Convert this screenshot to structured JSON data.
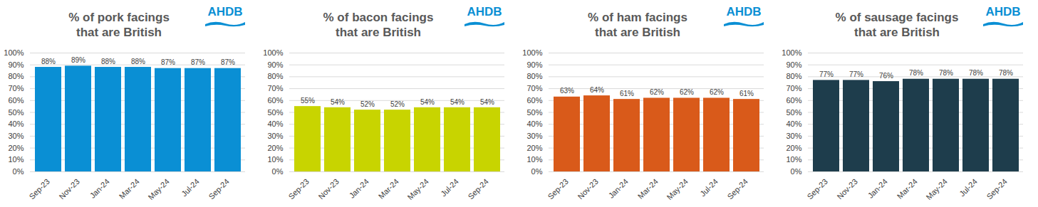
{
  "chart_data": [
    {
      "type": "bar",
      "title": "% of pork facings\nthat are British",
      "annotations": [
        "AHDB"
      ],
      "categories": [
        "Sep-23",
        "Nov-23",
        "Jan-24",
        "Mar-24",
        "May-24",
        "Jul-24",
        "Sep-24"
      ],
      "values": [
        88,
        89,
        88,
        88,
        87,
        87,
        87
      ],
      "value_labels": [
        "88%",
        "89%",
        "88%",
        "88%",
        "87%",
        "87%",
        "87%"
      ],
      "color": "#0a8fd4",
      "ylim": [
        0,
        100
      ],
      "yticks": [
        {
          "value": 0,
          "label": "0%"
        },
        {
          "value": 10,
          "label": "10%"
        },
        {
          "value": 20,
          "label": "20%"
        },
        {
          "value": 30,
          "label": "30%"
        },
        {
          "value": 40,
          "label": "40%"
        },
        {
          "value": 50,
          "label": "50%"
        },
        {
          "value": 60,
          "label": "60%"
        },
        {
          "value": 70,
          "label": "70%"
        },
        {
          "value": 80,
          "label": "80%"
        },
        {
          "value": 90,
          "label": "90%"
        },
        {
          "value": 100,
          "label": "100%"
        }
      ],
      "grid": true,
      "data_labels": true
    },
    {
      "type": "bar",
      "title": "% of bacon facings\nthat are British",
      "annotations": [
        "AHDB"
      ],
      "categories": [
        "Sep-23",
        "Nov-23",
        "Jan-24",
        "Mar-24",
        "May-24",
        "Jul-24",
        "Sep-24"
      ],
      "values": [
        55,
        54,
        52,
        52,
        54,
        54,
        54
      ],
      "value_labels": [
        "55%",
        "54%",
        "52%",
        "52%",
        "54%",
        "54%",
        "54%"
      ],
      "color": "#c8d400",
      "ylim": [
        0,
        100
      ],
      "yticks": [
        {
          "value": 0,
          "label": "0%"
        },
        {
          "value": 10,
          "label": "10%"
        },
        {
          "value": 20,
          "label": "20%"
        },
        {
          "value": 30,
          "label": "30%"
        },
        {
          "value": 40,
          "label": "40%"
        },
        {
          "value": 50,
          "label": "50%"
        },
        {
          "value": 60,
          "label": "60%"
        },
        {
          "value": 70,
          "label": "70%"
        },
        {
          "value": 80,
          "label": "80%"
        },
        {
          "value": 90,
          "label": "90%"
        },
        {
          "value": 100,
          "label": "100%"
        }
      ],
      "grid": true,
      "data_labels": true
    },
    {
      "type": "bar",
      "title": "% of ham facings\nthat are British",
      "annotations": [
        "AHDB"
      ],
      "categories": [
        "Sep-23",
        "Nov-23",
        "Jan-24",
        "Mar-24",
        "May-24",
        "Jul-24",
        "Sep-24"
      ],
      "values": [
        63,
        64,
        61,
        62,
        62,
        62,
        61
      ],
      "value_labels": [
        "63%",
        "64%",
        "61%",
        "62%",
        "62%",
        "62%",
        "61%"
      ],
      "color": "#d95a1a",
      "ylim": [
        0,
        100
      ],
      "yticks": [
        {
          "value": 0,
          "label": "0%"
        },
        {
          "value": 10,
          "label": "10%"
        },
        {
          "value": 20,
          "label": "20%"
        },
        {
          "value": 30,
          "label": "30%"
        },
        {
          "value": 40,
          "label": "40%"
        },
        {
          "value": 50,
          "label": "50%"
        },
        {
          "value": 60,
          "label": "60%"
        },
        {
          "value": 70,
          "label": "70%"
        },
        {
          "value": 80,
          "label": "80%"
        },
        {
          "value": 90,
          "label": "90%"
        },
        {
          "value": 100,
          "label": "100%"
        }
      ],
      "grid": true,
      "data_labels": true
    },
    {
      "type": "bar",
      "title": "% of sausage facings\nthat are British",
      "annotations": [
        "AHDB"
      ],
      "categories": [
        "Sep-23",
        "Nov-23",
        "Jan-24",
        "Mar-24",
        "May-24",
        "Jul-24",
        "Sep-24"
      ],
      "values": [
        77,
        77,
        76,
        78,
        78,
        78,
        78
      ],
      "value_labels": [
        "77%",
        "77%",
        "76%",
        "78%",
        "78%",
        "78%",
        "78%"
      ],
      "color": "#1e3d4c",
      "ylim": [
        0,
        100
      ],
      "yticks": [
        {
          "value": 0,
          "label": "0%"
        },
        {
          "value": 10,
          "label": "10%"
        },
        {
          "value": 20,
          "label": "20%"
        },
        {
          "value": 30,
          "label": "30%"
        },
        {
          "value": 40,
          "label": "40%"
        },
        {
          "value": 50,
          "label": "50%"
        },
        {
          "value": 60,
          "label": "60%"
        },
        {
          "value": 70,
          "label": "70%"
        },
        {
          "value": 80,
          "label": "80%"
        },
        {
          "value": 90,
          "label": "90%"
        },
        {
          "value": 100,
          "label": "100%"
        }
      ],
      "grid": true,
      "data_labels": true
    }
  ]
}
